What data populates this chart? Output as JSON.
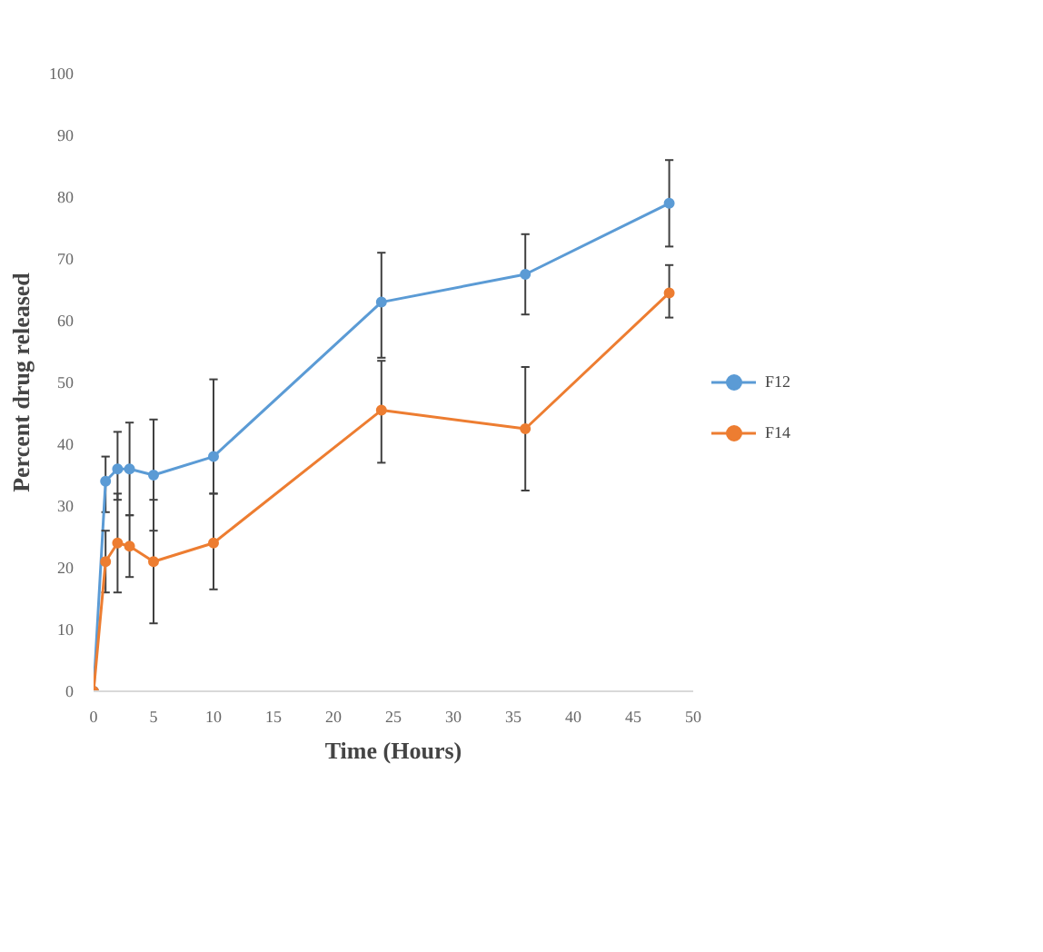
{
  "chart_data": {
    "type": "line",
    "xlabel": "Time (Hours)",
    "ylabel": "Percent drug released",
    "x": [
      0,
      1,
      2,
      3,
      5,
      10,
      24,
      36,
      48
    ],
    "series": [
      {
        "name": "F12",
        "color": "#5b9bd5",
        "values": [
          0,
          34,
          36,
          36,
          35,
          38,
          63,
          67.5,
          79
        ],
        "errors": [
          null,
          [
            29,
            38
          ],
          [
            31,
            42
          ],
          [
            28.5,
            43.5
          ],
          [
            26,
            44
          ],
          [
            32,
            50.5
          ],
          [
            54,
            71
          ],
          [
            61,
            74
          ],
          [
            72,
            86
          ]
        ]
      },
      {
        "name": "F14",
        "color": "#ed7d31",
        "values": [
          0,
          21,
          24,
          23.5,
          21,
          24,
          45.5,
          42.5,
          64.5
        ],
        "errors": [
          null,
          [
            16,
            26
          ],
          [
            16,
            32
          ],
          [
            18.5,
            28.5
          ],
          [
            11,
            31
          ],
          [
            16.5,
            32
          ],
          [
            37,
            53.5
          ],
          [
            32.5,
            52.5
          ],
          [
            60.5,
            69
          ]
        ]
      }
    ],
    "xlim": [
      0,
      50
    ],
    "xticks": [
      0,
      5,
      10,
      15,
      20,
      25,
      30,
      35,
      40,
      45,
      50
    ],
    "ylim": [
      0,
      100
    ],
    "yticks": [
      0,
      10,
      20,
      30,
      40,
      50,
      60,
      70,
      80,
      90,
      100
    ],
    "grid": false,
    "legend": "right",
    "marker": "circle",
    "line_style": "solid"
  }
}
